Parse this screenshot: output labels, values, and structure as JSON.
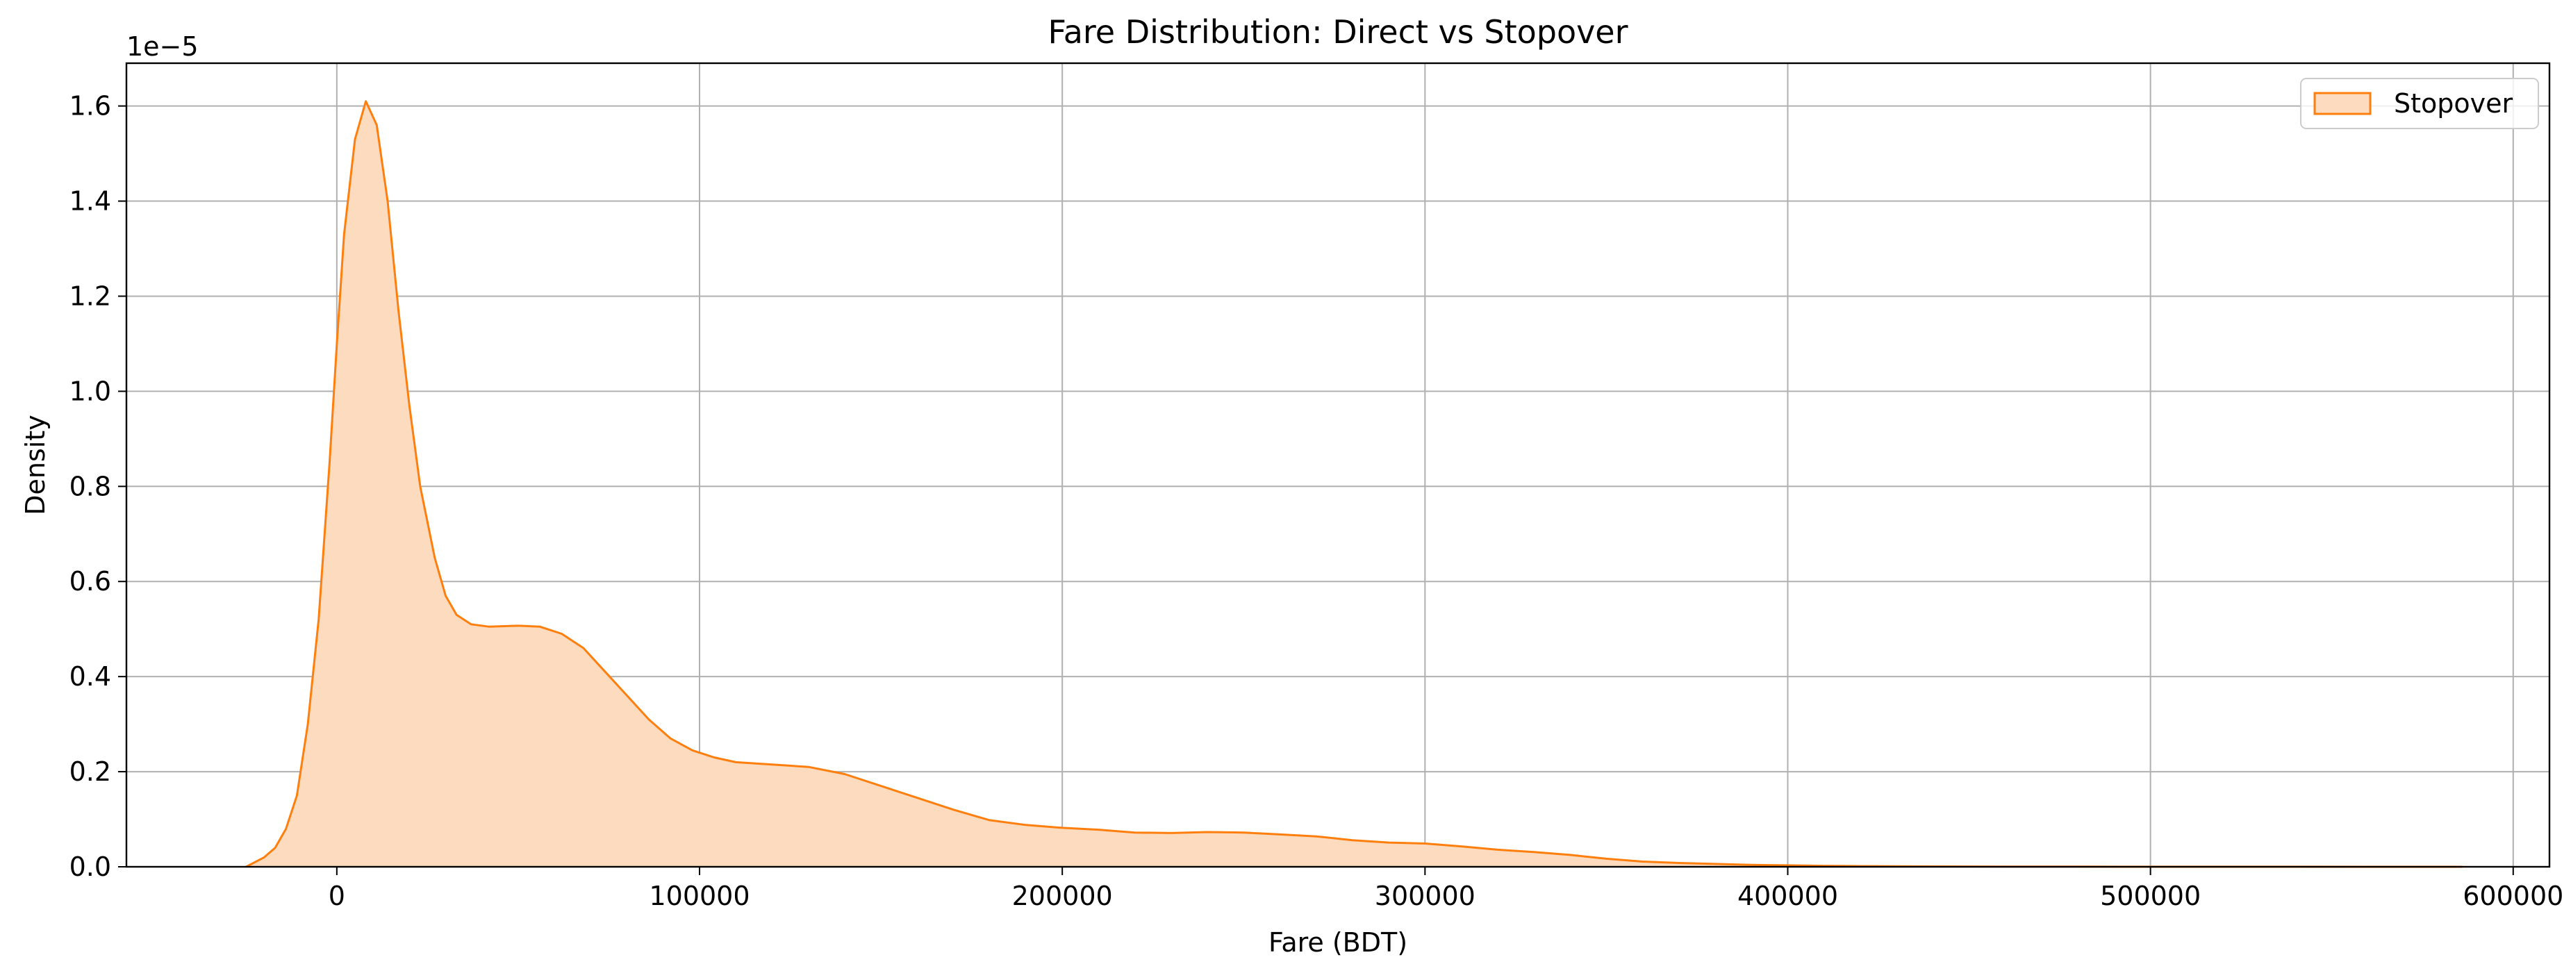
{
  "chart_data": {
    "type": "area",
    "title": "Fare Distribution: Direct vs Stopover",
    "xlabel": "Fare (BDT)",
    "ylabel": "Density",
    "y_offset_label": "1e−5",
    "xlim": [
      -58000,
      610000
    ],
    "ylim": [
      0,
      1.69
    ],
    "x_ticks": [
      0,
      100000,
      200000,
      300000,
      400000,
      500000,
      600000
    ],
    "x_tick_labels": [
      "0",
      "100000",
      "200000",
      "300000",
      "400000",
      "500000",
      "600000"
    ],
    "y_ticks": [
      0,
      0.2,
      0.4,
      0.6,
      0.8,
      1.0,
      1.2,
      1.4,
      1.6
    ],
    "y_tick_labels": [
      "0.0",
      "0.2",
      "0.4",
      "0.6",
      "0.8",
      "1.0",
      "1.2",
      "1.4",
      "1.6"
    ],
    "grid": true,
    "legend_position": "top-right",
    "series": [
      {
        "name": "Stopover",
        "line_color": "#ff7f0e",
        "fill_color": "#fddbbf",
        "points": [
          [
            -25000,
            0.0
          ],
          [
            -20000,
            0.02
          ],
          [
            -17000,
            0.04
          ],
          [
            -14000,
            0.08
          ],
          [
            -11000,
            0.15
          ],
          [
            -8000,
            0.3
          ],
          [
            -5000,
            0.52
          ],
          [
            -2000,
            0.85
          ],
          [
            0,
            1.1
          ],
          [
            2000,
            1.33
          ],
          [
            5000,
            1.53
          ],
          [
            8000,
            1.61
          ],
          [
            11000,
            1.56
          ],
          [
            14000,
            1.4
          ],
          [
            17000,
            1.17
          ],
          [
            20000,
            0.97
          ],
          [
            23000,
            0.8
          ],
          [
            27000,
            0.65
          ],
          [
            30000,
            0.57
          ],
          [
            33000,
            0.53
          ],
          [
            37000,
            0.51
          ],
          [
            42000,
            0.505
          ],
          [
            50000,
            0.507
          ],
          [
            56000,
            0.505
          ],
          [
            62000,
            0.49
          ],
          [
            68000,
            0.46
          ],
          [
            74000,
            0.41
          ],
          [
            80000,
            0.36
          ],
          [
            86000,
            0.31
          ],
          [
            92000,
            0.27
          ],
          [
            98000,
            0.245
          ],
          [
            104000,
            0.23
          ],
          [
            110000,
            0.22
          ],
          [
            120000,
            0.215
          ],
          [
            130000,
            0.21
          ],
          [
            140000,
            0.195
          ],
          [
            150000,
            0.17
          ],
          [
            160000,
            0.145
          ],
          [
            170000,
            0.12
          ],
          [
            180000,
            0.098
          ],
          [
            190000,
            0.088
          ],
          [
            200000,
            0.082
          ],
          [
            210000,
            0.078
          ],
          [
            220000,
            0.072
          ],
          [
            230000,
            0.071
          ],
          [
            240000,
            0.073
          ],
          [
            250000,
            0.072
          ],
          [
            260000,
            0.068
          ],
          [
            270000,
            0.064
          ],
          [
            280000,
            0.056
          ],
          [
            290000,
            0.051
          ],
          [
            300000,
            0.049
          ],
          [
            310000,
            0.043
          ],
          [
            320000,
            0.036
          ],
          [
            330000,
            0.031
          ],
          [
            340000,
            0.025
          ],
          [
            350000,
            0.017
          ],
          [
            360000,
            0.011
          ],
          [
            370000,
            0.008
          ],
          [
            380000,
            0.006
          ],
          [
            390000,
            0.004
          ],
          [
            400000,
            0.003
          ],
          [
            410000,
            0.002
          ],
          [
            420000,
            0.0015
          ],
          [
            440000,
            0.0008
          ],
          [
            460000,
            0.0005
          ],
          [
            480000,
            0.0003
          ],
          [
            500000,
            0.0002
          ],
          [
            520000,
            0.0001
          ],
          [
            540000,
            0.0001
          ],
          [
            560000,
            5e-05
          ],
          [
            586000,
            0.0
          ]
        ]
      }
    ]
  }
}
